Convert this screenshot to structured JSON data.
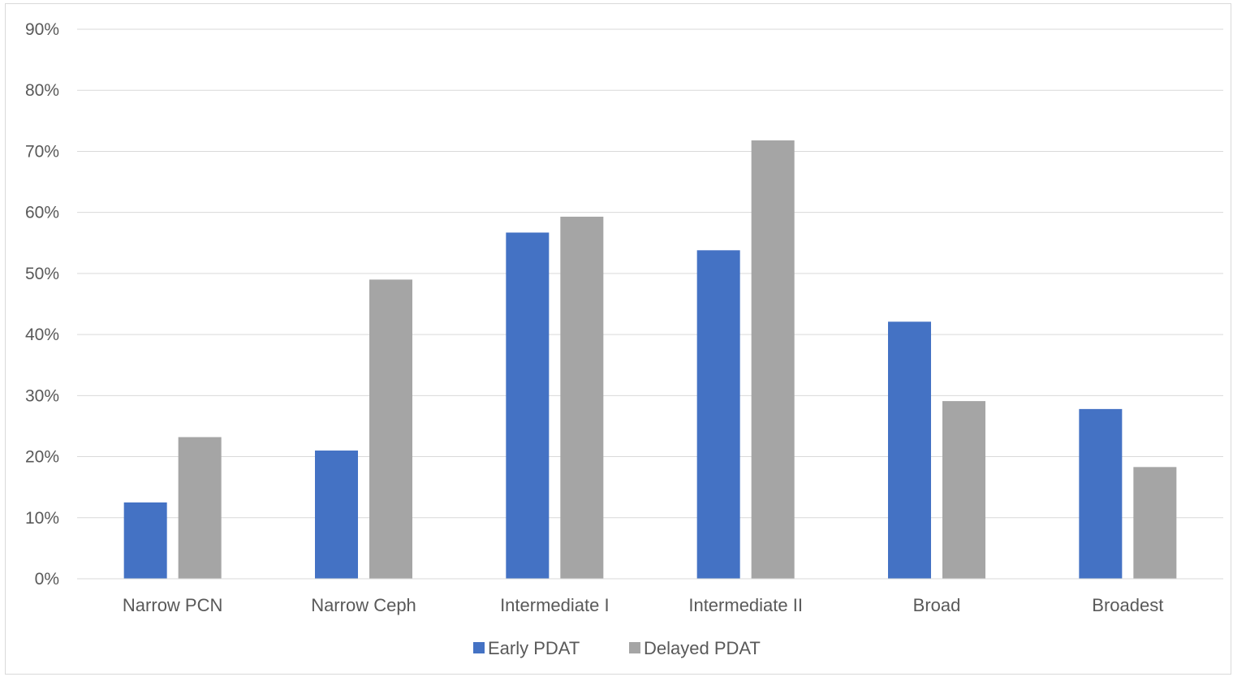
{
  "chart_data": {
    "type": "bar",
    "categories": [
      "Narrow PCN",
      "Narrow Ceph",
      "Intermediate I",
      "Intermediate II",
      "Broad",
      "Broadest"
    ],
    "series": [
      {
        "name": "Early PDAT",
        "color": "#4472c4",
        "values": [
          0.125,
          0.21,
          0.567,
          0.538,
          0.421,
          0.278
        ]
      },
      {
        "name": "Delayed PDAT",
        "color": "#a5a5a5",
        "values": [
          0.232,
          0.49,
          0.593,
          0.718,
          0.291,
          0.183
        ]
      }
    ],
    "y_ticks": [
      "0%",
      "10%",
      "20%",
      "30%",
      "40%",
      "50%",
      "60%",
      "70%",
      "80%",
      "90%"
    ],
    "ylim": [
      0,
      0.9
    ],
    "y_format": "percent",
    "title": "",
    "xlabel": "",
    "ylabel": "",
    "grid": true,
    "gridline_color": "#d9d9d9",
    "legend_position": "bottom"
  }
}
